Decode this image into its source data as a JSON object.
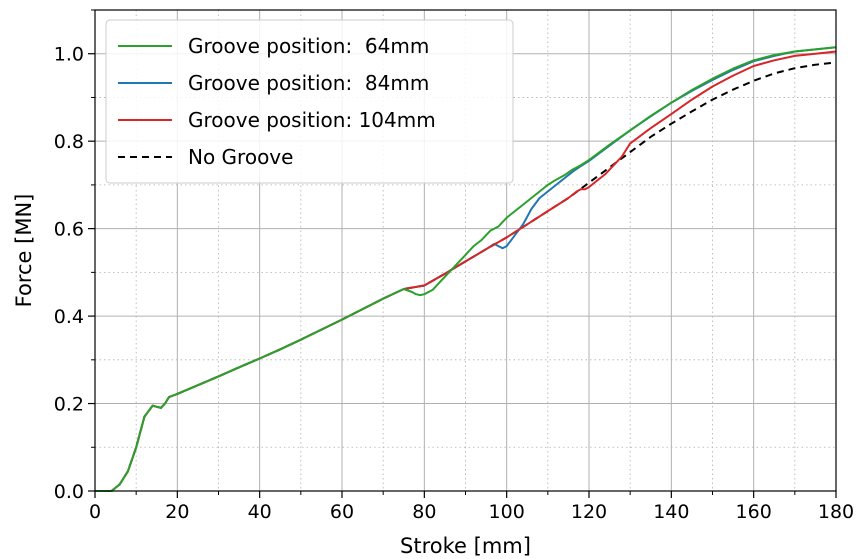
{
  "chart_data": {
    "type": "line",
    "title": "",
    "xlabel": "Stroke [mm]",
    "ylabel": "Force [MN]",
    "xlim": [
      0,
      180
    ],
    "ylim": [
      0,
      1.1
    ],
    "xticks": [
      0,
      20,
      40,
      60,
      80,
      100,
      120,
      140,
      160,
      180
    ],
    "yticks": [
      0.0,
      0.2,
      0.4,
      0.6,
      0.8,
      1.0
    ],
    "xtick_labels": [
      "0",
      "20",
      "40",
      "60",
      "80",
      "100",
      "120",
      "140",
      "160",
      "180"
    ],
    "ytick_labels": [
      "0.0",
      "0.2",
      "0.4",
      "0.6",
      "0.8",
      "1.0"
    ],
    "grid": "major solid, minor dotted",
    "legend_position": "top-left",
    "series": [
      {
        "name": "Groove position:  64mm",
        "color": "#2ca02c",
        "dash": "solid",
        "x": [
          0,
          4,
          6,
          8,
          10,
          12,
          14,
          16,
          17,
          18,
          20,
          25,
          30,
          35,
          40,
          45,
          50,
          55,
          60,
          65,
          70,
          75,
          77,
          78,
          79,
          80,
          82,
          84,
          86,
          88,
          90,
          92,
          94,
          96,
          98,
          100,
          102,
          104,
          106,
          108,
          110,
          112,
          114,
          116,
          118,
          120,
          125,
          130,
          135,
          140,
          145,
          150,
          155,
          160,
          165,
          170,
          175,
          180
        ],
        "y": [
          0.0,
          0.0,
          0.015,
          0.045,
          0.1,
          0.17,
          0.195,
          0.19,
          0.2,
          0.215,
          0.222,
          0.242,
          0.262,
          0.283,
          0.303,
          0.324,
          0.346,
          0.369,
          0.392,
          0.416,
          0.44,
          0.462,
          0.455,
          0.45,
          0.448,
          0.45,
          0.46,
          0.48,
          0.5,
          0.52,
          0.54,
          0.56,
          0.575,
          0.595,
          0.605,
          0.625,
          0.64,
          0.655,
          0.67,
          0.685,
          0.7,
          0.712,
          0.722,
          0.735,
          0.745,
          0.757,
          0.792,
          0.825,
          0.858,
          0.888,
          0.917,
          0.943,
          0.966,
          0.985,
          0.997,
          1.005,
          1.01,
          1.015
        ]
      },
      {
        "name": "Groove position:  84mm",
        "color": "#1f77b4",
        "dash": "solid",
        "x": [
          0,
          4,
          6,
          8,
          10,
          12,
          14,
          16,
          17,
          18,
          20,
          25,
          30,
          35,
          40,
          45,
          50,
          55,
          60,
          65,
          70,
          75,
          80,
          85,
          90,
          95,
          97,
          98,
          99,
          100,
          102,
          104,
          106,
          108,
          110,
          112,
          114,
          116,
          118,
          120,
          125,
          130,
          135,
          140,
          145,
          150,
          155,
          160,
          165,
          170,
          175,
          180
        ],
        "y": [
          0.0,
          0.0,
          0.015,
          0.045,
          0.1,
          0.17,
          0.195,
          0.19,
          0.2,
          0.215,
          0.222,
          0.242,
          0.262,
          0.283,
          0.303,
          0.324,
          0.346,
          0.369,
          0.392,
          0.416,
          0.44,
          0.462,
          0.47,
          0.497,
          0.525,
          0.553,
          0.565,
          0.56,
          0.555,
          0.56,
          0.585,
          0.61,
          0.645,
          0.67,
          0.685,
          0.7,
          0.715,
          0.73,
          0.743,
          0.755,
          0.79,
          0.825,
          0.857,
          0.888,
          0.915,
          0.94,
          0.963,
          0.983,
          0.995,
          1.005,
          1.01,
          1.015
        ]
      },
      {
        "name": "Groove position: 104mm",
        "color": "#d62728",
        "dash": "solid",
        "x": [
          0,
          4,
          6,
          8,
          10,
          12,
          14,
          16,
          17,
          18,
          20,
          25,
          30,
          35,
          40,
          45,
          50,
          55,
          60,
          65,
          70,
          75,
          80,
          85,
          90,
          95,
          100,
          105,
          110,
          115,
          117,
          118,
          119,
          120,
          122,
          124,
          126,
          128,
          130,
          135,
          140,
          145,
          150,
          155,
          160,
          165,
          170,
          175,
          180
        ],
        "y": [
          0.0,
          0.0,
          0.015,
          0.045,
          0.1,
          0.17,
          0.195,
          0.19,
          0.2,
          0.215,
          0.222,
          0.242,
          0.262,
          0.283,
          0.303,
          0.324,
          0.346,
          0.369,
          0.392,
          0.416,
          0.44,
          0.462,
          0.47,
          0.497,
          0.525,
          0.553,
          0.58,
          0.61,
          0.64,
          0.67,
          0.685,
          0.69,
          0.69,
          0.695,
          0.71,
          0.725,
          0.745,
          0.765,
          0.795,
          0.83,
          0.862,
          0.895,
          0.925,
          0.95,
          0.972,
          0.985,
          0.995,
          1.0,
          1.005
        ]
      },
      {
        "name": "No Groove",
        "color": "#000000",
        "dash": "dashed",
        "x": [
          0,
          4,
          6,
          8,
          10,
          12,
          14,
          16,
          17,
          18,
          20,
          25,
          30,
          35,
          40,
          45,
          50,
          55,
          60,
          65,
          70,
          75,
          80,
          85,
          90,
          95,
          100,
          105,
          110,
          115,
          120,
          125,
          130,
          135,
          140,
          145,
          150,
          155,
          160,
          165,
          170,
          175,
          180
        ],
        "y": [
          0.0,
          0.0,
          0.015,
          0.045,
          0.1,
          0.17,
          0.195,
          0.19,
          0.2,
          0.215,
          0.222,
          0.242,
          0.262,
          0.283,
          0.303,
          0.324,
          0.346,
          0.369,
          0.392,
          0.416,
          0.44,
          0.462,
          0.47,
          0.497,
          0.525,
          0.553,
          0.58,
          0.61,
          0.64,
          0.67,
          0.705,
          0.74,
          0.775,
          0.81,
          0.84,
          0.868,
          0.895,
          0.918,
          0.938,
          0.955,
          0.967,
          0.975,
          0.98
        ]
      }
    ]
  }
}
